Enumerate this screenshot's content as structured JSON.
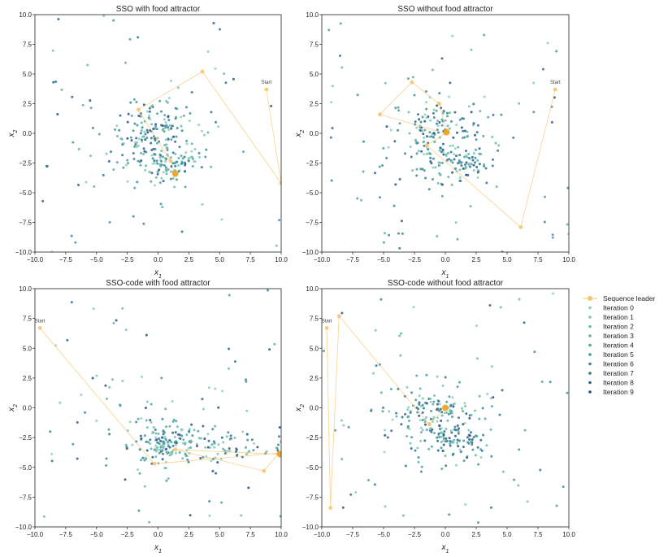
{
  "figure": {
    "legend": [
      {
        "label": "Sequence leader",
        "color": "#f6c56f",
        "kind": "leader"
      },
      {
        "label": "Iteration 0",
        "color": "#8ccfbb"
      },
      {
        "label": "Iteration 1",
        "color": "#7cc7b5"
      },
      {
        "label": "Iteration 2",
        "color": "#6dbaae"
      },
      {
        "label": "Iteration 3",
        "color": "#5fb1a8"
      },
      {
        "label": "Iteration 4",
        "color": "#4fa3a2"
      },
      {
        "label": "Iteration 5",
        "color": "#43969e"
      },
      {
        "label": "Iteration 6",
        "color": "#38879a"
      },
      {
        "label": "Iteration 7",
        "color": "#2f7594"
      },
      {
        "label": "Iteration 8",
        "color": "#2a628b"
      },
      {
        "label": "Iteration 9",
        "color": "#26517f"
      }
    ]
  },
  "chart_data": [
    {
      "type": "scatter",
      "title": "SSO with food attractor",
      "xlabel": "x1",
      "ylabel": "x2",
      "xlim": [
        -10,
        10
      ],
      "ylim": [
        -10,
        10
      ],
      "xticks": [
        "−10.0",
        "−7.5",
        "−5.0",
        "−2.5",
        "0.0",
        "2.5",
        "5.0",
        "7.5",
        "10.0"
      ],
      "yticks": [
        "−10.0",
        "−7.5",
        "−5.0",
        "−2.5",
        "0.0",
        "2.5",
        "5.0",
        "7.5",
        "10.0"
      ],
      "start_label": "Start",
      "leader_path": [
        [
          8.8,
          3.7
        ],
        [
          10.0,
          -4.2
        ],
        [
          3.6,
          5.2
        ],
        [
          -1.6,
          2.0
        ],
        [
          1.0,
          -2.3
        ],
        [
          1.4,
          -3.4
        ]
      ],
      "scatter_hint": {
        "seed": 11,
        "outlier_count": 60,
        "clusters": [
          {
            "cx": -0.3,
            "cy": 0.0,
            "rx": 1.7,
            "ry": 1.3,
            "n": 110
          },
          {
            "cx": 1.0,
            "cy": -2.9,
            "rx": 1.0,
            "ry": 0.7,
            "n": 60
          },
          {
            "cx": 0.5,
            "cy": -1.0,
            "rx": 2.5,
            "ry": 2.2,
            "n": 90
          }
        ]
      }
    },
    {
      "type": "scatter",
      "title": "SSO without food attractor",
      "xlabel": "x1",
      "ylabel": "x2",
      "xlim": [
        -10,
        10
      ],
      "ylim": [
        -10,
        10
      ],
      "xticks": [
        "−10.0",
        "−7.5",
        "−5.0",
        "−2.5",
        "0.0",
        "2.5",
        "5.0",
        "7.5",
        "10.0"
      ],
      "yticks": [
        "−10.0",
        "−7.5",
        "−5.0",
        "−2.5",
        "0.0",
        "2.5",
        "5.0",
        "7.5",
        "10.0"
      ],
      "start_label": "Start",
      "leader_path": [
        [
          8.9,
          3.7
        ],
        [
          6.1,
          -7.9
        ],
        [
          -1.5,
          -1.0
        ],
        [
          0.0,
          0.0
        ],
        [
          -5.3,
          1.6
        ],
        [
          -2.7,
          4.3
        ],
        [
          -0.5,
          2.5
        ],
        [
          0.1,
          0.1
        ]
      ],
      "scatter_hint": {
        "seed": 23,
        "outlier_count": 60,
        "clusters": [
          {
            "cx": -0.8,
            "cy": 0.0,
            "rx": 1.6,
            "ry": 1.4,
            "n": 100
          },
          {
            "cx": 1.0,
            "cy": -2.7,
            "rx": 1.2,
            "ry": 0.8,
            "n": 60
          },
          {
            "cx": 0.0,
            "cy": -1.0,
            "rx": 2.6,
            "ry": 2.3,
            "n": 90
          }
        ]
      }
    },
    {
      "type": "scatter",
      "title": "SSO-code with food attractor",
      "xlabel": "x1",
      "ylabel": "x2",
      "xlim": [
        -10,
        10
      ],
      "ylim": [
        -10,
        10
      ],
      "xticks": [
        "−10.0",
        "−7.5",
        "−5.0",
        "−2.5",
        "0.0",
        "2.5",
        "5.0",
        "7.5",
        "10.0"
      ],
      "yticks": [
        "−10.0",
        "−7.5",
        "−5.0",
        "−2.5",
        "0.0",
        "2.5",
        "5.0",
        "7.5",
        "10.0"
      ],
      "start_label": "Start",
      "leader_path": [
        [
          -9.6,
          6.7
        ],
        [
          -0.3,
          -4.7
        ],
        [
          9.8,
          -3.8
        ],
        [
          8.6,
          -5.3
        ],
        [
          1.4,
          -3.5
        ],
        [
          9.9,
          -3.9
        ]
      ],
      "scatter_hint": {
        "seed": 37,
        "outlier_count": 60,
        "clusters": [
          {
            "cx": 0.7,
            "cy": -2.9,
            "rx": 1.3,
            "ry": 0.8,
            "n": 90
          },
          {
            "cx": 5.5,
            "cy": -3.3,
            "rx": 4.0,
            "ry": 0.6,
            "n": 90
          },
          {
            "cx": 1.0,
            "cy": -2.5,
            "rx": 2.4,
            "ry": 1.8,
            "n": 70
          }
        ]
      }
    },
    {
      "type": "scatter",
      "title": "SSO-code without food attractor",
      "xlabel": "x1",
      "ylabel": "x2",
      "xlim": [
        -10,
        10
      ],
      "ylim": [
        -10,
        10
      ],
      "xticks": [
        "−10.0",
        "−7.5",
        "−5.0",
        "−2.5",
        "0.0",
        "2.5",
        "5.0",
        "7.5",
        "10.0"
      ],
      "yticks": [
        "−10.0",
        "−7.5",
        "−5.0",
        "−2.5",
        "0.0",
        "2.5",
        "5.0",
        "7.5",
        "10.0"
      ],
      "start_label": "Start",
      "leader_path": [
        [
          -9.6,
          6.7
        ],
        [
          -9.3,
          -8.4
        ],
        [
          -8.6,
          7.7
        ],
        [
          -1.3,
          -1.4
        ],
        [
          0.0,
          0.0
        ]
      ],
      "scatter_hint": {
        "seed": 53,
        "outlier_count": 60,
        "clusters": [
          {
            "cx": -1.0,
            "cy": -0.5,
            "rx": 1.6,
            "ry": 1.1,
            "n": 90
          },
          {
            "cx": 1.0,
            "cy": -2.8,
            "rx": 1.2,
            "ry": 0.8,
            "n": 60
          },
          {
            "cx": 0.0,
            "cy": -1.2,
            "rx": 2.8,
            "ry": 2.3,
            "n": 90
          }
        ]
      }
    }
  ]
}
